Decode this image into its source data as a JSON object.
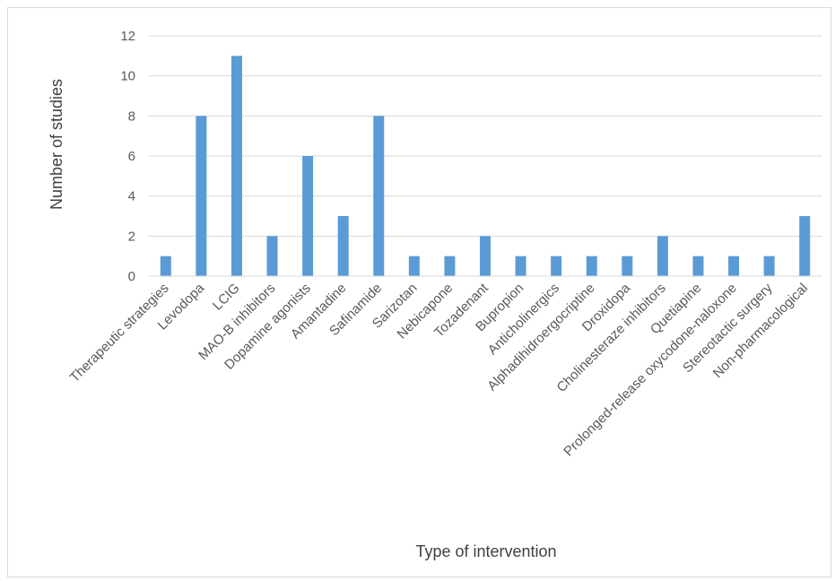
{
  "chart_data": {
    "type": "bar",
    "title": "",
    "xlabel": "Type of intervention",
    "ylabel": "Number of studies",
    "ylim": [
      0,
      12
    ],
    "yticks": [
      0,
      2,
      4,
      6,
      8,
      10,
      12
    ],
    "grid": true,
    "legend": "none",
    "bar_color": "#5b9bd5",
    "categories": [
      "Therapeutic strategies",
      "Levodopa",
      "LCIG",
      "MAO-B inhibitors",
      "Dopamine agonists",
      "Amantadine",
      "Safinamide",
      "Sarizotan",
      "Nebicapone",
      "Tozadenant",
      "Bupropion",
      "Anticholinergics",
      "Alphadihidroergocriptine",
      "Droxidopa",
      "Cholinesteraze inhibitors",
      "Quetiapine",
      "Prolonged-release oxycodone-naloxone",
      "Stereotactic surgery",
      "Non-pharmacological"
    ],
    "values": [
      1,
      8,
      11,
      2,
      6,
      3,
      8,
      1,
      1,
      2,
      1,
      1,
      1,
      1,
      2,
      1,
      1,
      1,
      3
    ]
  }
}
